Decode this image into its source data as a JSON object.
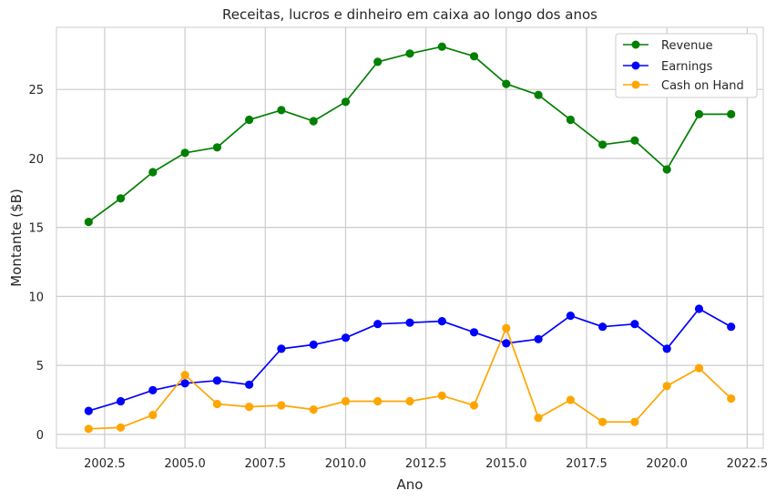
{
  "chart_data": {
    "type": "line",
    "title": "Receitas, lucros e dinheiro em caixa ao longo dos anos",
    "xlabel": "Ano",
    "ylabel": "Montante ($B)",
    "xlim": [
      2001.0,
      2023.0
    ],
    "ylim": [
      -1.0,
      29.5
    ],
    "x_ticks": [
      2002.5,
      2005.0,
      2007.5,
      2010.0,
      2012.5,
      2015.0,
      2017.5,
      2020.0,
      2022.5
    ],
    "x_tick_labels": [
      "2002.5",
      "2005.0",
      "2007.5",
      "2010.0",
      "2012.5",
      "2015.0",
      "2017.5",
      "2020.0",
      "2022.5"
    ],
    "y_ticks": [
      0,
      5,
      10,
      15,
      20,
      25
    ],
    "y_tick_labels": [
      "0",
      "5",
      "10",
      "15",
      "20",
      "25"
    ],
    "grid": true,
    "legend_position": "top-right",
    "x": [
      2002,
      2003,
      2004,
      2005,
      2006,
      2007,
      2008,
      2009,
      2010,
      2011,
      2012,
      2013,
      2014,
      2015,
      2016,
      2017,
      2018,
      2019,
      2020,
      2021,
      2022
    ],
    "series": [
      {
        "name": "Revenue",
        "color": "#008000",
        "values": [
          15.4,
          17.1,
          19.0,
          20.4,
          20.8,
          22.8,
          23.5,
          22.7,
          24.1,
          27.0,
          27.6,
          28.1,
          27.4,
          25.4,
          24.6,
          22.8,
          21.0,
          21.3,
          19.2,
          23.2,
          23.2
        ]
      },
      {
        "name": "Earnings",
        "color": "#0000ff",
        "values": [
          1.7,
          2.4,
          3.2,
          3.7,
          3.9,
          3.6,
          6.2,
          6.5,
          7.0,
          8.0,
          8.1,
          8.2,
          7.4,
          6.6,
          6.9,
          8.6,
          7.8,
          8.0,
          6.2,
          9.1,
          7.8
        ]
      },
      {
        "name": "Cash on Hand",
        "color": "#ffa500",
        "values": [
          0.4,
          0.5,
          1.4,
          4.3,
          2.2,
          2.0,
          2.1,
          1.8,
          2.4,
          2.4,
          2.4,
          2.8,
          2.1,
          7.7,
          1.2,
          2.5,
          0.9,
          0.9,
          3.5,
          4.8,
          2.6
        ]
      }
    ]
  }
}
